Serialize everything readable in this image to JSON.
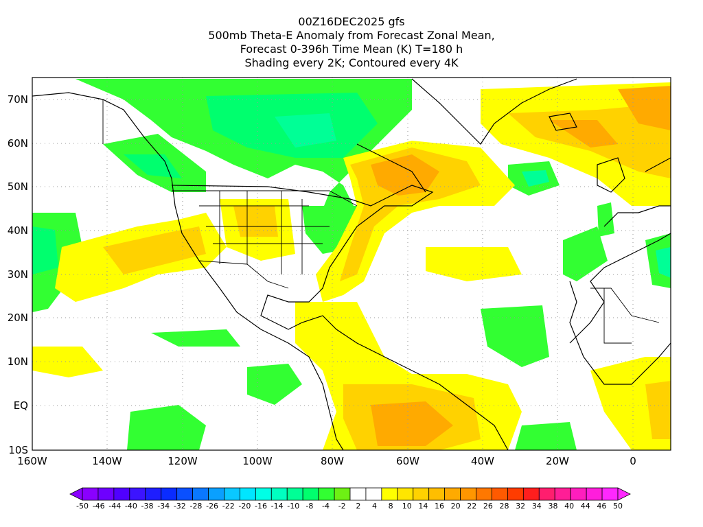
{
  "title": {
    "lines": [
      "00Z16DEC2025 gfs",
      "500mb Theta-E Anomaly from Forecast Zonal Mean,",
      "Forecast 0-396h Time Mean (K) T=180 h",
      "Shading every 2K; Contoured every 4K"
    ]
  },
  "map": {
    "lat_labels": [
      "70N",
      "60N",
      "50N",
      "40N",
      "30N",
      "20N",
      "10N",
      "EQ",
      "10S"
    ],
    "lon_labels": [
      "160W",
      "140W",
      "120W",
      "100W",
      "80W",
      "60W",
      "40W",
      "20W",
      "0"
    ],
    "gridlines": true,
    "lon_range": [
      -160,
      10
    ],
    "lat_range": [
      -10,
      75
    ]
  },
  "colorbar": {
    "labels": [
      "-50",
      "-46",
      "-44",
      "-40",
      "-38",
      "-34",
      "-32",
      "-28",
      "-26",
      "-22",
      "-20",
      "-16",
      "-14",
      "-10",
      "-8",
      "-4",
      "-2",
      "2",
      "4",
      "8",
      "10",
      "14",
      "16",
      "20",
      "22",
      "26",
      "28",
      "32",
      "34",
      "38",
      "40",
      "44",
      "46",
      "50"
    ],
    "colors": [
      "#8a00ff",
      "#6e00ff",
      "#5000ff",
      "#3c14ff",
      "#1e1eff",
      "#0a2cff",
      "#0a50ff",
      "#0a78ff",
      "#0aa0ff",
      "#0ac8ff",
      "#00e6ff",
      "#00ffe6",
      "#00ffc0",
      "#00ff96",
      "#00ff6e",
      "#32ff32",
      "#6ef014",
      "#ffffff",
      "#ffffff",
      "#ffff00",
      "#ffe600",
      "#ffd200",
      "#ffbe00",
      "#ffaa00",
      "#ff9600",
      "#ff7800",
      "#ff5a00",
      "#ff3c00",
      "#ff1e1e",
      "#ff1e6e",
      "#ff1e96",
      "#ff1ebe",
      "#ff1edc",
      "#ff28ff"
    ]
  }
}
